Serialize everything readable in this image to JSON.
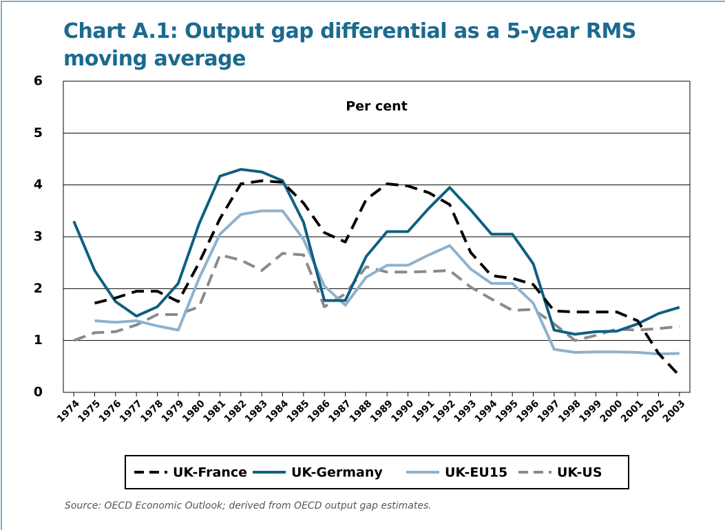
{
  "chart_data": {
    "type": "line",
    "title": "Chart A.1: Output gap differential as a 5-year RMS moving average",
    "annotation": "Per cent",
    "source": "Source: OECD Economic Outlook; derived from OECD output gap estimates.",
    "categories": [
      "1974",
      "1975",
      "1976",
      "1977",
      "1978",
      "1979",
      "1980",
      "1981",
      "1982",
      "1983",
      "1984",
      "1985",
      "1986",
      "1987",
      "1988",
      "1989",
      "1990",
      "1991",
      "1992",
      "1993",
      "1994",
      "1995",
      "1996",
      "1997",
      "1998",
      "1999",
      "2000",
      "2001",
      "2002",
      "2003"
    ],
    "series": [
      {
        "name": "UK-France",
        "color": "#000000",
        "dash": true,
        "values": [
          null,
          1.72,
          1.82,
          1.95,
          1.95,
          1.75,
          2.5,
          3.35,
          4.02,
          4.08,
          4.05,
          3.65,
          3.08,
          2.9,
          3.72,
          4.02,
          3.98,
          3.85,
          3.62,
          2.7,
          2.25,
          2.2,
          2.08,
          1.57,
          1.55,
          1.55,
          1.55,
          1.38,
          0.75,
          0.32
        ]
      },
      {
        "name": "UK-Germany",
        "color": "#0f5f82",
        "dash": false,
        "values": [
          3.3,
          2.35,
          1.75,
          1.47,
          1.65,
          2.1,
          3.25,
          4.17,
          4.3,
          4.25,
          4.08,
          3.28,
          1.77,
          1.77,
          2.62,
          3.1,
          3.1,
          3.55,
          3.95,
          3.52,
          3.05,
          3.05,
          2.48,
          1.2,
          1.12,
          1.17,
          1.18,
          1.32,
          1.52,
          1.64
        ]
      },
      {
        "name": "UK-EU15",
        "color": "#8fb1cc",
        "dash": false,
        "values": [
          null,
          1.38,
          1.35,
          1.38,
          1.28,
          1.2,
          2.2,
          3.05,
          3.43,
          3.5,
          3.5,
          2.95,
          2.05,
          1.68,
          2.22,
          2.45,
          2.45,
          2.65,
          2.83,
          2.38,
          2.1,
          2.1,
          1.72,
          0.83,
          0.77,
          0.78,
          0.78,
          0.77,
          0.74,
          0.75
        ]
      },
      {
        "name": "UK-US",
        "color": "#8a8a8a",
        "dash": true,
        "values": [
          1.0,
          1.15,
          1.17,
          1.3,
          1.5,
          1.5,
          1.65,
          2.65,
          2.55,
          2.35,
          2.68,
          2.65,
          1.65,
          1.9,
          2.42,
          2.32,
          2.32,
          2.33,
          2.35,
          2.03,
          1.8,
          1.58,
          1.6,
          1.32,
          1.0,
          1.1,
          1.22,
          1.2,
          1.23,
          1.27
        ]
      }
    ],
    "ylim": [
      0,
      6
    ],
    "yticks": [
      0,
      1,
      2,
      3,
      4,
      5,
      6
    ],
    "grid": true
  }
}
